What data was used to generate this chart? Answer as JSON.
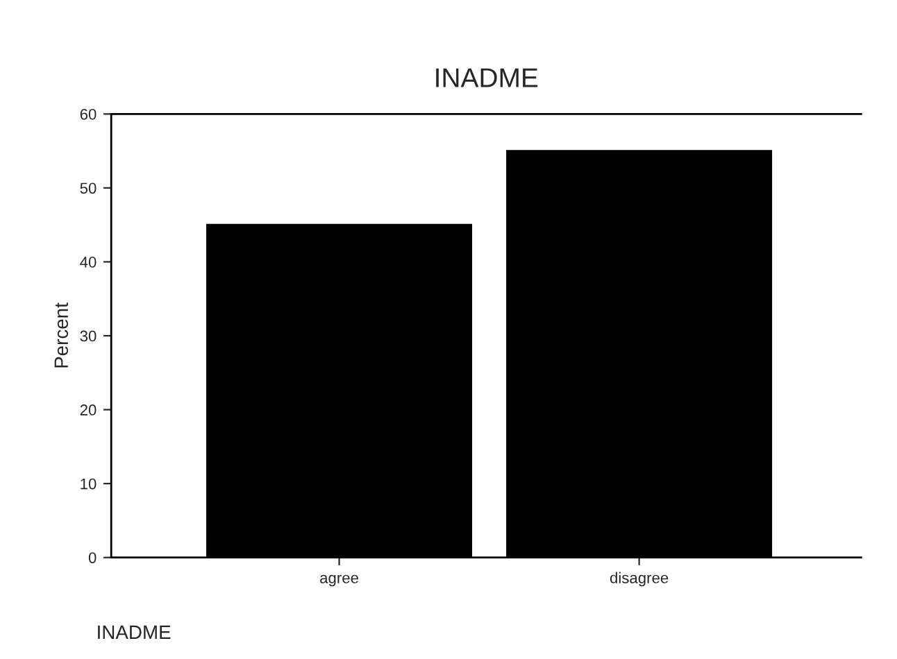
{
  "chart_data": {
    "type": "bar",
    "title": "INADME",
    "xlabel": "INADME",
    "ylabel": "Percent",
    "categories": [
      "agree",
      "disagree"
    ],
    "values": [
      45,
      55
    ],
    "color": "#000000",
    "ylim": [
      0,
      60
    ],
    "yticks": [
      0,
      10,
      20,
      30,
      40,
      50,
      60
    ],
    "grid": false
  }
}
